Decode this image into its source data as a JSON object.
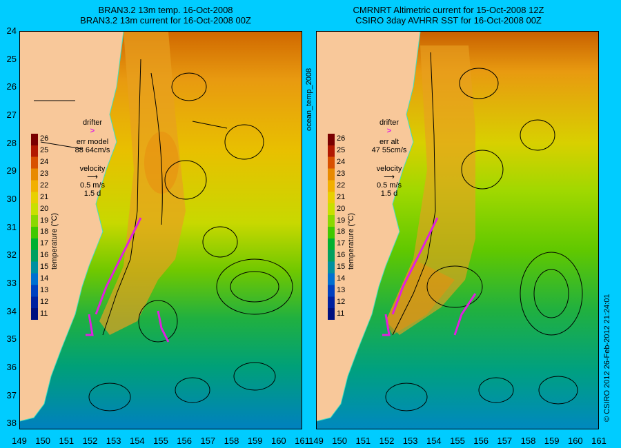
{
  "left_panel": {
    "title_line1": "BRAN3.2 13m temp. 16-Oct-2008",
    "title_line2": "BRAN3.2 13m current for 16-Oct-2008 00Z",
    "drifter_label": "drifter",
    "err_line1": "err model",
    "err_line2": "88 64cm/s",
    "velocity_label": "velocity",
    "velocity_scale": "0.5 m/s",
    "velocity_days": "1.5 d"
  },
  "right_panel": {
    "title_line1": "CMRNRT Altimetric current for 15-Oct-2008 12Z",
    "title_line2": "CSIRO 3day AVHRR SST for 16-Oct-2008 00Z",
    "drifter_label": "drifter",
    "err_line1": "err alt",
    "err_line2": "47 55cm/s",
    "velocity_label": "velocity",
    "velocity_scale": "0.5 m/s",
    "velocity_days": "1.5 d"
  },
  "colorbar": {
    "title": "temperature (°C)",
    "ticks": [
      "26",
      "25",
      "24",
      "23",
      "22",
      "21",
      "20",
      "19",
      "18",
      "17",
      "16",
      "15",
      "14",
      "13",
      "12",
      "11"
    ],
    "colors": [
      "#7a0000",
      "#b21800",
      "#d85000",
      "#e88a00",
      "#f2b000",
      "#e8d000",
      "#c8e000",
      "#8ad800",
      "#40c800",
      "#00b030",
      "#00a060",
      "#0090a0",
      "#0070d0",
      "#0040c0",
      "#0020a0",
      "#001080"
    ]
  },
  "y_axis_labels": [
    "24",
    "25",
    "26",
    "27",
    "28",
    "29",
    "30",
    "31",
    "32",
    "33",
    "34",
    "35",
    "36",
    "37",
    "38"
  ],
  "x_axis_labels": [
    "149",
    "150",
    "151",
    "152",
    "153",
    "154",
    "155",
    "156",
    "157",
    "158",
    "159",
    "160",
    "161"
  ],
  "side_label": "ocean_temp_2008",
  "copyright": "© CSIRO 2012   26-Feb-2012 21:24:01",
  "colors": {
    "background": "#00ccff",
    "land": "#f8c89a",
    "drifter": "#e020e0",
    "coast_line": "#40e0c0"
  }
}
